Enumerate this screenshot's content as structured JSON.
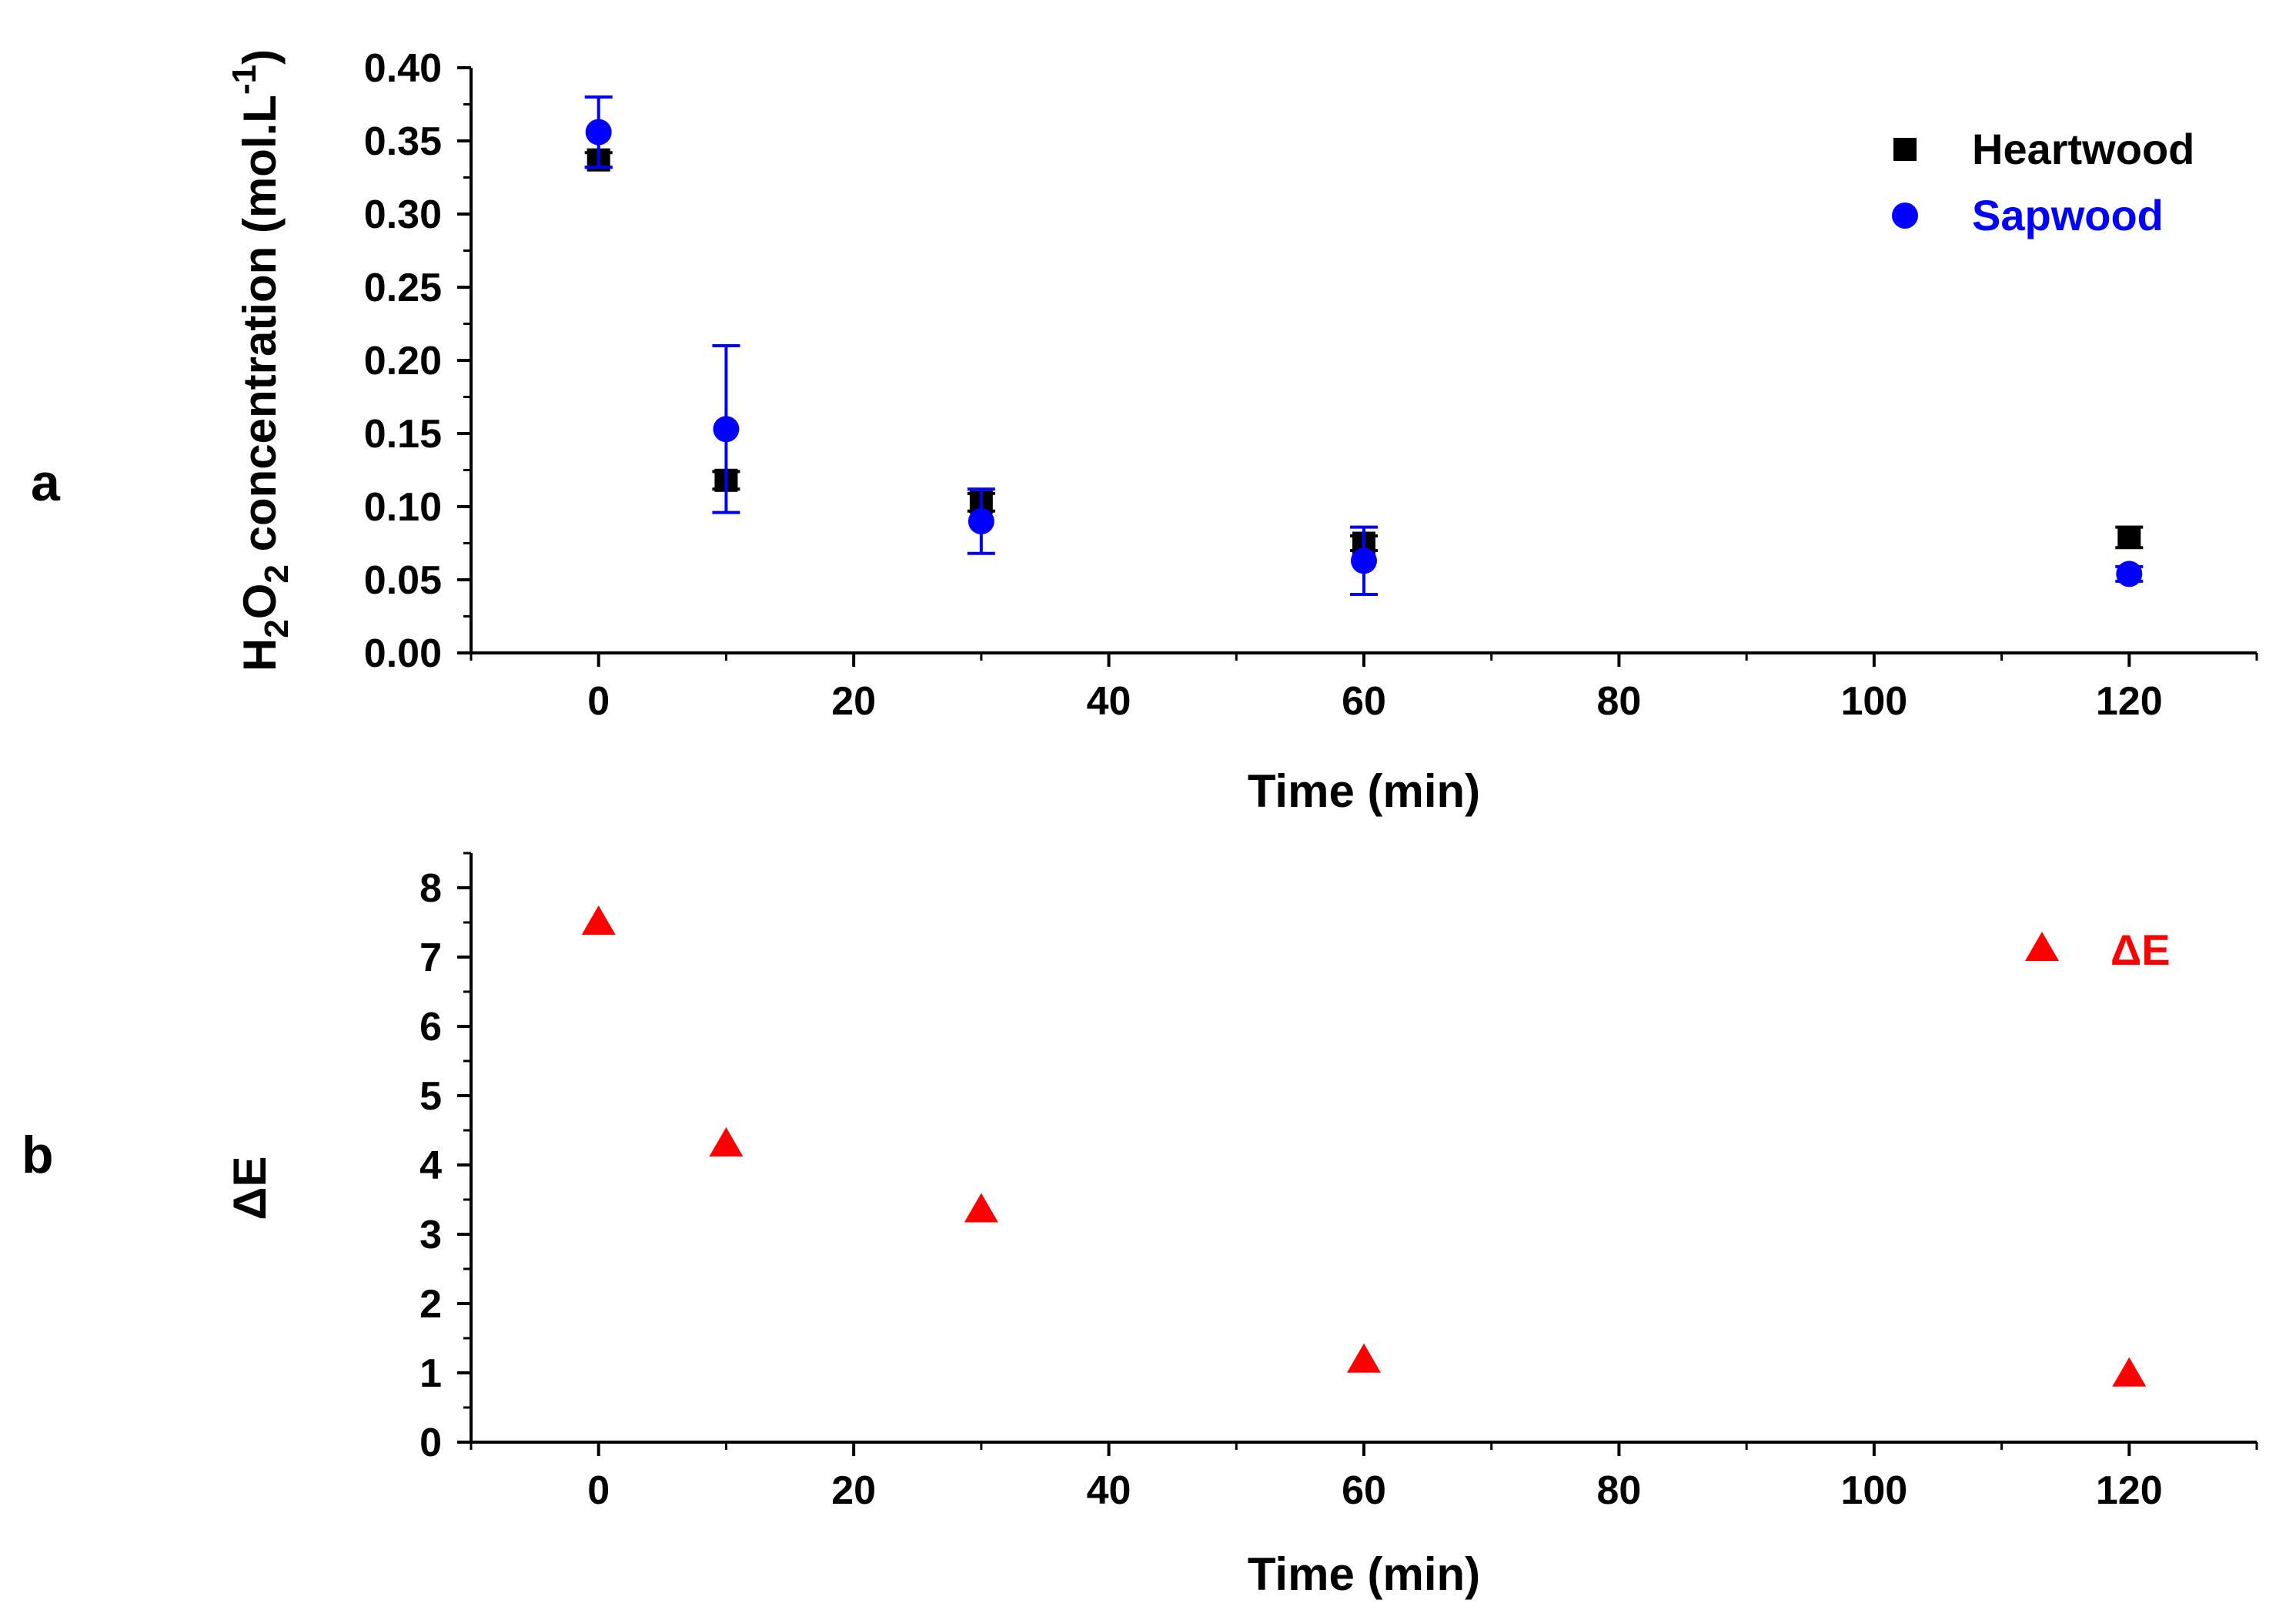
{
  "chart_data": [
    {
      "panel_label": "a",
      "type": "scatter",
      "xlabel": "Time (min)",
      "ylabel": {
        "base": "H",
        "sub1": "2",
        "mid": "O",
        "sub2": "2",
        "rest": " concentration (mol.L",
        "sup": "-1",
        "close": ")"
      },
      "xlim": [
        -10,
        130
      ],
      "ylim": [
        0.0,
        0.4
      ],
      "xticks": [
        0,
        20,
        40,
        60,
        80,
        100,
        120
      ],
      "xtick_labels": [
        "0",
        "20",
        "40",
        "60",
        "80",
        "100",
        "120"
      ],
      "yticks": [
        0.0,
        0.05,
        0.1,
        0.15,
        0.2,
        0.25,
        0.3,
        0.35,
        0.4
      ],
      "ytick_labels": [
        "0.00",
        "0.05",
        "0.10",
        "0.15",
        "0.20",
        "0.25",
        "0.30",
        "0.35",
        "0.40"
      ],
      "series": [
        {
          "name": "Heartwood",
          "marker": "square",
          "color": "#000000",
          "x": [
            0,
            10,
            30,
            60,
            120
          ],
          "y": [
            0.337,
            0.118,
            0.103,
            0.075,
            0.079
          ],
          "err": [
            0.005,
            0.006,
            0.006,
            0.005,
            0.007
          ]
        },
        {
          "name": "Sapwood",
          "marker": "circle",
          "color": "#0000ff",
          "x": [
            0,
            10,
            30,
            60,
            120
          ],
          "y": [
            0.356,
            0.153,
            0.09,
            0.063,
            0.054
          ],
          "err": [
            0.024,
            0.057,
            0.022,
            0.023,
            0.005
          ]
        }
      ],
      "legend": {
        "placement": "top-right",
        "entries": [
          "Heartwood",
          "Sapwood"
        ]
      }
    },
    {
      "panel_label": "b",
      "type": "scatter",
      "xlabel": "Time (min)",
      "ylabel": "ΔE",
      "xlim": [
        -10,
        130
      ],
      "ylim": [
        0,
        8.5
      ],
      "xticks": [
        0,
        20,
        40,
        60,
        80,
        100,
        120
      ],
      "xtick_labels": [
        "0",
        "20",
        "40",
        "60",
        "80",
        "100",
        "120"
      ],
      "yticks": [
        0,
        1,
        2,
        3,
        4,
        5,
        6,
        7,
        8
      ],
      "ytick_labels": [
        "0",
        "1",
        "2",
        "3",
        "4",
        "5",
        "6",
        "7",
        "8"
      ],
      "series": [
        {
          "name": "ΔE",
          "marker": "triangle",
          "color": "#ff0000",
          "x": [
            0,
            10,
            30,
            60,
            120
          ],
          "y": [
            7.5,
            4.3,
            3.35,
            1.18,
            0.98
          ]
        }
      ],
      "legend": {
        "placement": "top-right",
        "entries": [
          "ΔE"
        ]
      }
    }
  ]
}
